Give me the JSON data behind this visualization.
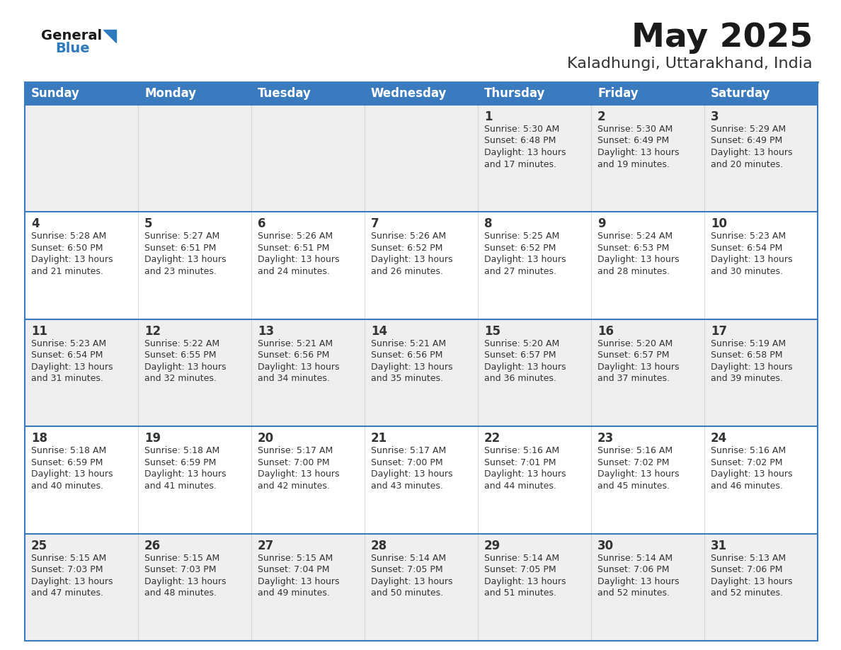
{
  "title": "May 2025",
  "subtitle": "Kaladhungi, Uttarakhand, India",
  "days_of_week": [
    "Sunday",
    "Monday",
    "Tuesday",
    "Wednesday",
    "Thursday",
    "Friday",
    "Saturday"
  ],
  "header_bg": "#3a7abf",
  "header_text": "#ffffff",
  "row_bg_odd": "#efefef",
  "row_bg_even": "#ffffff",
  "cell_border_color": "#3a7abf",
  "day_num_color": "#333333",
  "content_color": "#333333",
  "title_color": "#1a1a1a",
  "subtitle_color": "#333333",
  "logo_general_color": "#1a1a1a",
  "logo_blue_color": "#2f7abf",
  "calendar_data": [
    [
      null,
      null,
      null,
      null,
      {
        "day": 1,
        "sunrise": "5:30 AM",
        "sunset": "6:48 PM",
        "daylight_h": "13 hours",
        "daylight_m": "and 17 minutes."
      },
      {
        "day": 2,
        "sunrise": "5:30 AM",
        "sunset": "6:49 PM",
        "daylight_h": "13 hours",
        "daylight_m": "and 19 minutes."
      },
      {
        "day": 3,
        "sunrise": "5:29 AM",
        "sunset": "6:49 PM",
        "daylight_h": "13 hours",
        "daylight_m": "and 20 minutes."
      }
    ],
    [
      {
        "day": 4,
        "sunrise": "5:28 AM",
        "sunset": "6:50 PM",
        "daylight_h": "13 hours",
        "daylight_m": "and 21 minutes."
      },
      {
        "day": 5,
        "sunrise": "5:27 AM",
        "sunset": "6:51 PM",
        "daylight_h": "13 hours",
        "daylight_m": "and 23 minutes."
      },
      {
        "day": 6,
        "sunrise": "5:26 AM",
        "sunset": "6:51 PM",
        "daylight_h": "13 hours",
        "daylight_m": "and 24 minutes."
      },
      {
        "day": 7,
        "sunrise": "5:26 AM",
        "sunset": "6:52 PM",
        "daylight_h": "13 hours",
        "daylight_m": "and 26 minutes."
      },
      {
        "day": 8,
        "sunrise": "5:25 AM",
        "sunset": "6:52 PM",
        "daylight_h": "13 hours",
        "daylight_m": "and 27 minutes."
      },
      {
        "day": 9,
        "sunrise": "5:24 AM",
        "sunset": "6:53 PM",
        "daylight_h": "13 hours",
        "daylight_m": "and 28 minutes."
      },
      {
        "day": 10,
        "sunrise": "5:23 AM",
        "sunset": "6:54 PM",
        "daylight_h": "13 hours",
        "daylight_m": "and 30 minutes."
      }
    ],
    [
      {
        "day": 11,
        "sunrise": "5:23 AM",
        "sunset": "6:54 PM",
        "daylight_h": "13 hours",
        "daylight_m": "and 31 minutes."
      },
      {
        "day": 12,
        "sunrise": "5:22 AM",
        "sunset": "6:55 PM",
        "daylight_h": "13 hours",
        "daylight_m": "and 32 minutes."
      },
      {
        "day": 13,
        "sunrise": "5:21 AM",
        "sunset": "6:56 PM",
        "daylight_h": "13 hours",
        "daylight_m": "and 34 minutes."
      },
      {
        "day": 14,
        "sunrise": "5:21 AM",
        "sunset": "6:56 PM",
        "daylight_h": "13 hours",
        "daylight_m": "and 35 minutes."
      },
      {
        "day": 15,
        "sunrise": "5:20 AM",
        "sunset": "6:57 PM",
        "daylight_h": "13 hours",
        "daylight_m": "and 36 minutes."
      },
      {
        "day": 16,
        "sunrise": "5:20 AM",
        "sunset": "6:57 PM",
        "daylight_h": "13 hours",
        "daylight_m": "and 37 minutes."
      },
      {
        "day": 17,
        "sunrise": "5:19 AM",
        "sunset": "6:58 PM",
        "daylight_h": "13 hours",
        "daylight_m": "and 39 minutes."
      }
    ],
    [
      {
        "day": 18,
        "sunrise": "5:18 AM",
        "sunset": "6:59 PM",
        "daylight_h": "13 hours",
        "daylight_m": "and 40 minutes."
      },
      {
        "day": 19,
        "sunrise": "5:18 AM",
        "sunset": "6:59 PM",
        "daylight_h": "13 hours",
        "daylight_m": "and 41 minutes."
      },
      {
        "day": 20,
        "sunrise": "5:17 AM",
        "sunset": "7:00 PM",
        "daylight_h": "13 hours",
        "daylight_m": "and 42 minutes."
      },
      {
        "day": 21,
        "sunrise": "5:17 AM",
        "sunset": "7:00 PM",
        "daylight_h": "13 hours",
        "daylight_m": "and 43 minutes."
      },
      {
        "day": 22,
        "sunrise": "5:16 AM",
        "sunset": "7:01 PM",
        "daylight_h": "13 hours",
        "daylight_m": "and 44 minutes."
      },
      {
        "day": 23,
        "sunrise": "5:16 AM",
        "sunset": "7:02 PM",
        "daylight_h": "13 hours",
        "daylight_m": "and 45 minutes."
      },
      {
        "day": 24,
        "sunrise": "5:16 AM",
        "sunset": "7:02 PM",
        "daylight_h": "13 hours",
        "daylight_m": "and 46 minutes."
      }
    ],
    [
      {
        "day": 25,
        "sunrise": "5:15 AM",
        "sunset": "7:03 PM",
        "daylight_h": "13 hours",
        "daylight_m": "and 47 minutes."
      },
      {
        "day": 26,
        "sunrise": "5:15 AM",
        "sunset": "7:03 PM",
        "daylight_h": "13 hours",
        "daylight_m": "and 48 minutes."
      },
      {
        "day": 27,
        "sunrise": "5:15 AM",
        "sunset": "7:04 PM",
        "daylight_h": "13 hours",
        "daylight_m": "and 49 minutes."
      },
      {
        "day": 28,
        "sunrise": "5:14 AM",
        "sunset": "7:05 PM",
        "daylight_h": "13 hours",
        "daylight_m": "and 50 minutes."
      },
      {
        "day": 29,
        "sunrise": "5:14 AM",
        "sunset": "7:05 PM",
        "daylight_h": "13 hours",
        "daylight_m": "and 51 minutes."
      },
      {
        "day": 30,
        "sunrise": "5:14 AM",
        "sunset": "7:06 PM",
        "daylight_h": "13 hours",
        "daylight_m": "and 52 minutes."
      },
      {
        "day": 31,
        "sunrise": "5:13 AM",
        "sunset": "7:06 PM",
        "daylight_h": "13 hours",
        "daylight_m": "and 52 minutes."
      }
    ]
  ]
}
